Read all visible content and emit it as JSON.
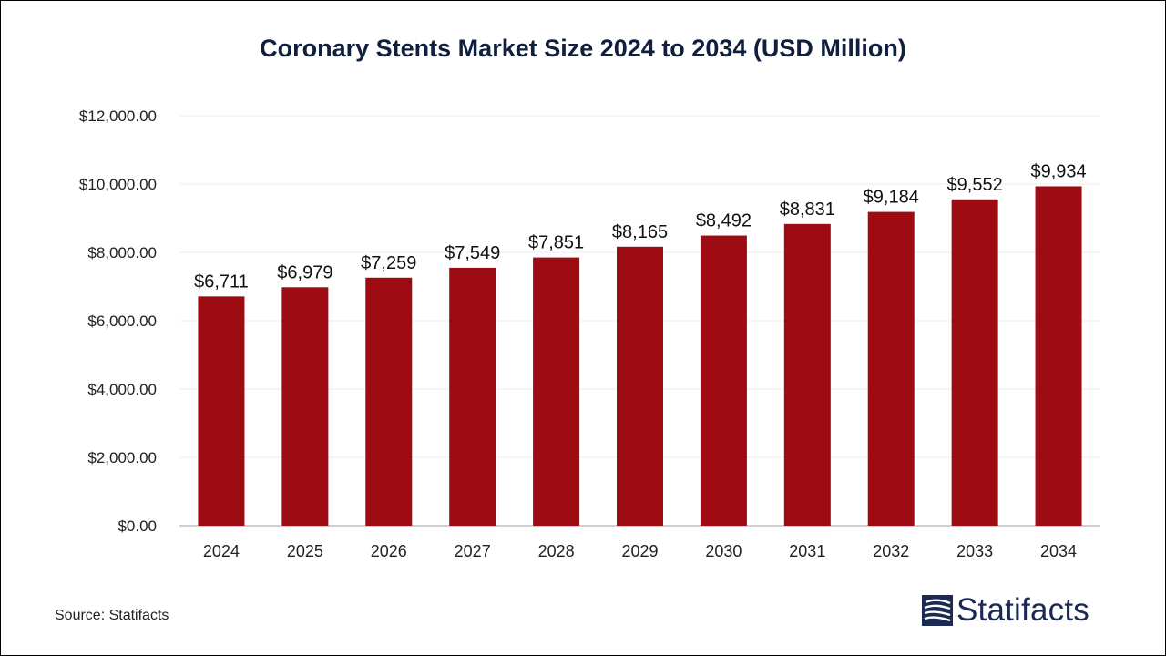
{
  "chart_data": {
    "type": "bar",
    "title": "Coronary Stents Market Size 2024 to 2034 (USD Million)",
    "categories": [
      "2024",
      "2025",
      "2026",
      "2027",
      "2028",
      "2029",
      "2030",
      "2031",
      "2032",
      "2033",
      "2034"
    ],
    "values": [
      6711,
      6979,
      7259,
      7549,
      7851,
      8165,
      8492,
      8831,
      9184,
      9552,
      9934
    ],
    "data_labels": [
      "$6,711",
      "$6,979",
      "$7,259",
      "$7,549",
      "$7,851",
      "$8,165",
      "$8,492",
      "$8,831",
      "$9,184",
      "$9,552",
      "$9,934"
    ],
    "y_ticks": [
      0,
      2000,
      4000,
      6000,
      8000,
      10000,
      12000
    ],
    "y_tick_labels": [
      "$0.00",
      "$2,000.00",
      "$4,000.00",
      "$6,000.00",
      "$8,000.00",
      "$10,000.00",
      "$12,000.00"
    ],
    "ylim": [
      0,
      12000
    ],
    "grid": true,
    "bar_color": "#9e0b12"
  },
  "footer": {
    "source": "Source: Statifacts",
    "brand": "Statifacts"
  }
}
